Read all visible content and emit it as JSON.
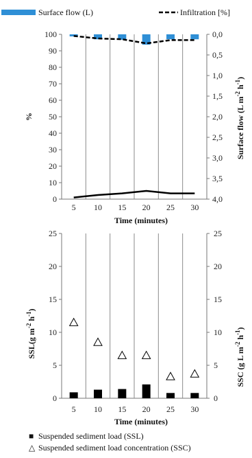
{
  "chart_data": [
    {
      "type": "bar+line",
      "legend": [
        {
          "label": "Surface flow (L)",
          "marker": "blue-bar"
        },
        {
          "label": "Infiltration [%]",
          "marker": "dashed-line"
        }
      ],
      "x": [
        5,
        10,
        15,
        20,
        25,
        30
      ],
      "xlabel": "Time (minutes)",
      "ylabel_left": "%",
      "ylabel_right": "Surface flow (L m-2 h-1)",
      "ylim_left": [
        0,
        100
      ],
      "ylim_right_inverted": [
        0.0,
        4.0
      ],
      "left_ticks": [
        "0",
        "10",
        "20",
        "30",
        "40",
        "50",
        "60",
        "70",
        "80",
        "90",
        "100"
      ],
      "right_ticks": [
        "0,0",
        "0,5",
        "1,0",
        "1,5",
        "2,0",
        "2,5",
        "3,0",
        "3,5",
        "4,0"
      ],
      "series": [
        {
          "name": "Surface flow (L)",
          "axis": "right_inverted",
          "kind": "bar",
          "color": "#2f8fd6",
          "values": [
            0.05,
            0.12,
            0.13,
            0.25,
            0.12,
            0.12
          ]
        },
        {
          "name": "Infiltration [%]",
          "axis": "left",
          "kind": "dashed-line",
          "color": "#000000",
          "values": [
            99,
            97.5,
            97,
            94.5,
            96.5,
            96.5
          ]
        },
        {
          "axis": "left",
          "kind": "line",
          "color": "#000000",
          "values": [
            1,
            2.5,
            3.5,
            5,
            3.5,
            3.5
          ]
        }
      ],
      "grid": "vertical"
    },
    {
      "type": "bar+scatter",
      "x": [
        5,
        10,
        15,
        20,
        25,
        30
      ],
      "xlabel": "Time (minutes)",
      "ylabel_left": "SSL(g m-2 h-1)",
      "ylabel_right": "SSC (g L m-2 h-1)",
      "ylim_left": [
        0,
        25
      ],
      "ylim_right": [
        0,
        25
      ],
      "left_ticks": [
        "0",
        "5",
        "10",
        "15",
        "20",
        "25"
      ],
      "right_ticks": [
        "0",
        "5",
        "10",
        "15",
        "20",
        "25"
      ],
      "series": [
        {
          "name": "Suspended sediment load (SSL)",
          "kind": "bar",
          "color": "#000000",
          "values": [
            0.9,
            1.3,
            1.4,
            2.1,
            0.8,
            0.8
          ]
        },
        {
          "name": "Suspended sediment load concentration (SSC)",
          "kind": "triangle-marker",
          "color": "#000000",
          "values": [
            11.5,
            8.5,
            6.5,
            6.5,
            3.3,
            3.7
          ]
        }
      ],
      "legend": [
        {
          "label": "Suspended sediment load (SSL)",
          "marker": "■"
        },
        {
          "label": "Suspended sediment load concentration (SSC)",
          "marker": "△"
        }
      ],
      "grid": "vertical"
    }
  ]
}
